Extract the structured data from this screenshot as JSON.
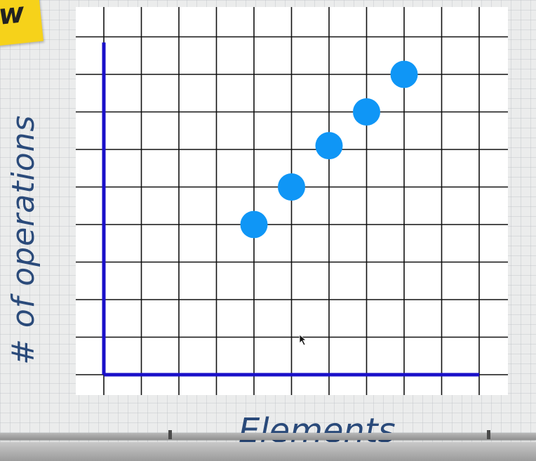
{
  "badge": {
    "text": "w"
  },
  "chart_data": {
    "type": "scatter",
    "title": "",
    "xlabel": "Elements",
    "ylabel": "# of operations",
    "grid": true,
    "xlim": [
      0,
      10
    ],
    "ylim": [
      0,
      9
    ],
    "point_color": "#0f96f6",
    "axis_color": "#1a10c9",
    "grid_color": "#111111",
    "points": [
      {
        "x": 4,
        "y": 4.0
      },
      {
        "x": 5,
        "y": 5.0
      },
      {
        "x": 6,
        "y": 6.1
      },
      {
        "x": 7,
        "y": 7.0
      },
      {
        "x": 8,
        "y": 8.0
      }
    ]
  }
}
